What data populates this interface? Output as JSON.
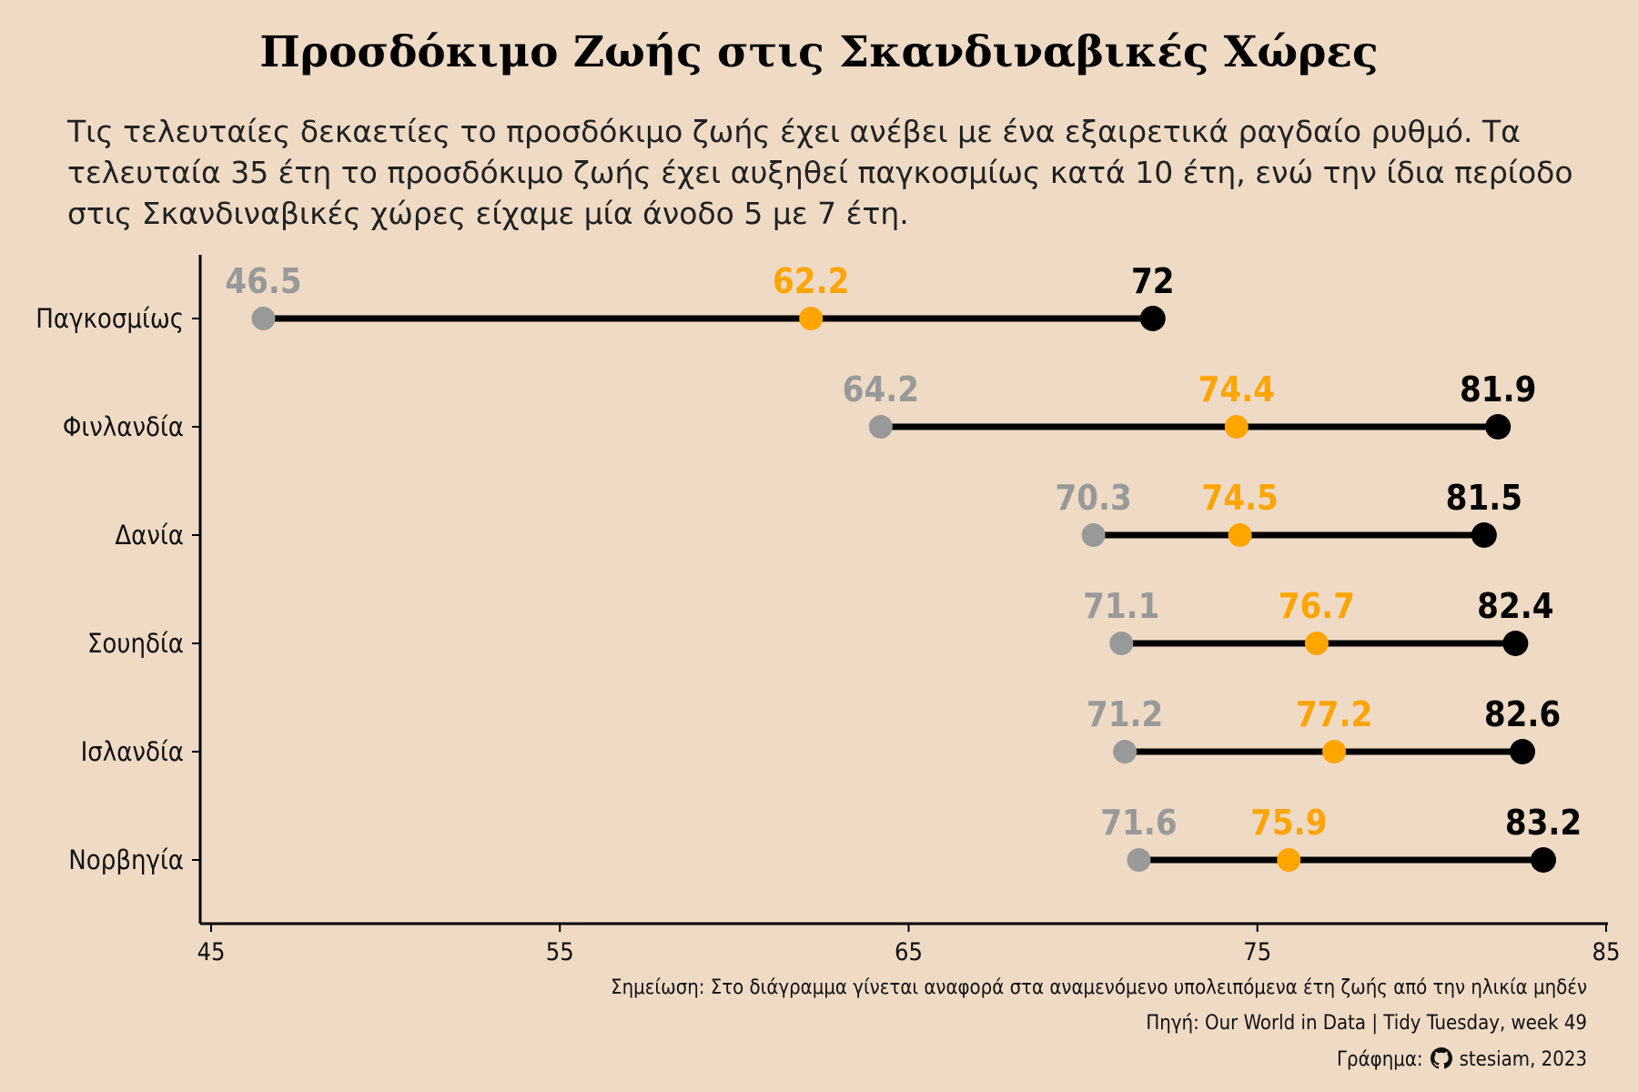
{
  "chart_data": {
    "type": "dumbbell",
    "title": "Προσδόκιμο Ζωής στις Σκανδιναβικές Χώρες",
    "subtitle": "Τις τελευταίες δεκαετίες το προσδόκιμο ζωής έχει ανέβει με ένα εξαιρετικά ραγδαίο ρυθμό. Τα τελευταία 35 έτη το προσδόκιμο ζωής έχει αυξηθεί παγκοσμίως κατά 10 έτη, ενώ την ίδια περίοδο στις Σκανδιναβικές χώρες είχαμε μία άνοδο 5 με 7 έτη.",
    "categories": [
      "Παγκοσμίως",
      "Φινλανδία",
      "Δανία",
      "Σουηδία",
      "Ισλανδία",
      "Νορβηγία"
    ],
    "series": [
      {
        "color": "#999999",
        "values": [
          46.5,
          64.2,
          70.3,
          71.1,
          71.2,
          71.6
        ]
      },
      {
        "color": "#FFA500",
        "values": [
          62.2,
          74.4,
          74.5,
          76.7,
          77.2,
          75.9
        ]
      },
      {
        "color": "#000000",
        "values": [
          72,
          81.9,
          81.5,
          82.4,
          82.6,
          83.2
        ]
      }
    ],
    "x_ticks": [
      45,
      55,
      65,
      75,
      85
    ],
    "xlim": [
      45,
      85
    ],
    "grid": false,
    "legend": "none"
  },
  "captions": {
    "note": "Σημείωση: Στο διάγραμμα γίνεται αναφορά στα αναμενόμενο υπολειπόμενα έτη ζωής από την ηλικία μηδέν",
    "source": "Πηγή: Our World in Data | Tidy Tuesday, week 49",
    "credit_prefix": "Γράφημα:",
    "credit_suffix": "stesiam, 2023"
  },
  "colors": {
    "background": "#EFDAC6",
    "start": "#999999",
    "middle": "#FFA500",
    "end": "#000000"
  }
}
